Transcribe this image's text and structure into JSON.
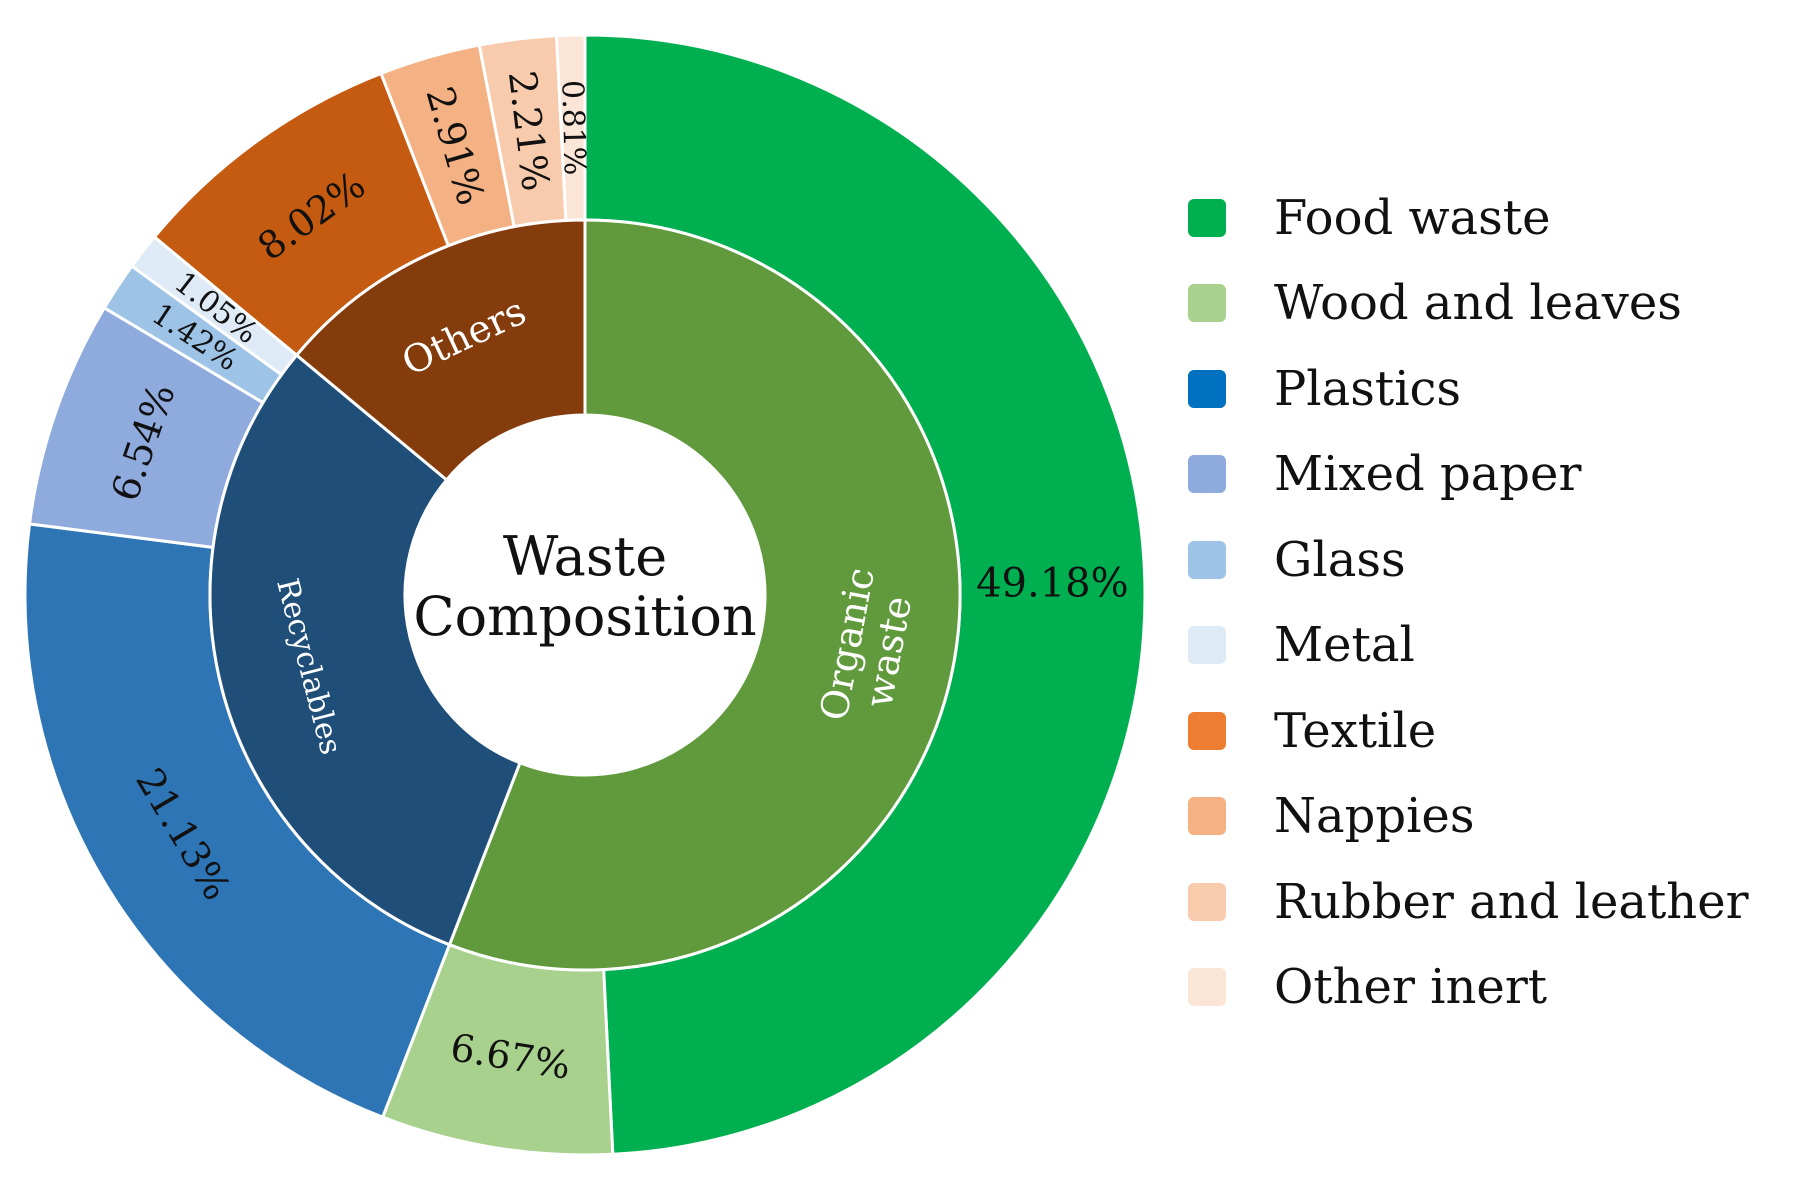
{
  "chart_data": {
    "type": "pie",
    "subtype": "sunburst",
    "title": "Waste Composition",
    "title_position": "center",
    "outer_ring": [
      {
        "name": "Food waste",
        "value": 49.18,
        "label": "49.18%",
        "color": "#00B050",
        "group": "Organic waste"
      },
      {
        "name": "Wood and leaves",
        "value": 6.67,
        "label": "6.67%",
        "color": "#A9D18E",
        "group": "Organic waste"
      },
      {
        "name": "Plastics",
        "value": 21.13,
        "label": "21.13%",
        "color": "#2E75B6",
        "group": "Recyclables"
      },
      {
        "name": "Mixed paper",
        "value": 6.54,
        "label": "6.54%",
        "color": "#8FAADC",
        "group": "Recyclables"
      },
      {
        "name": "Glass",
        "value": 1.42,
        "label": "1.42%",
        "color": "#9DC3E6",
        "group": "Recyclables"
      },
      {
        "name": "Metal",
        "value": 1.05,
        "label": "1.05%",
        "color": "#DEEBF7",
        "group": "Recyclables"
      },
      {
        "name": "Textile",
        "value": 8.02,
        "label": "8.02%",
        "color": "#C55A11",
        "group": "Others"
      },
      {
        "name": "Nappies",
        "value": 2.91,
        "label": "2.91%",
        "color": "#F4B183",
        "group": "Others"
      },
      {
        "name": "Rubber and leather",
        "value": 2.21,
        "label": "2.21%",
        "color": "#F8CBAD",
        "group": "Others"
      },
      {
        "name": "Other inert",
        "value": 0.81,
        "label": "0.81%",
        "color": "#FBE5D6",
        "group": "Others"
      }
    ],
    "inner_ring": [
      {
        "name": "Organic waste",
        "value": 55.85,
        "color": "#619A3C"
      },
      {
        "name": "Recyclables",
        "value": 30.14,
        "color": "#1F4E79"
      },
      {
        "name": "Others",
        "value": 13.95,
        "color": "#843C0C"
      }
    ],
    "legend": {
      "placement": "right",
      "entries": [
        {
          "label": "Food waste",
          "color": "#00B050"
        },
        {
          "label": "Wood and leaves",
          "color": "#A9D18E"
        },
        {
          "label": "Plastics",
          "color": "#0070C0"
        },
        {
          "label": "Mixed paper",
          "color": "#8FAADC"
        },
        {
          "label": "Glass",
          "color": "#9DC3E6"
        },
        {
          "label": "Metal",
          "color": "#DEEBF7"
        },
        {
          "label": "Textile",
          "color": "#ED7D31"
        },
        {
          "label": "Nappies",
          "color": "#F4B183"
        },
        {
          "label": "Rubber and leather",
          "color": "#F8CBAD"
        },
        {
          "label": "Other inert",
          "color": "#FBE5D6"
        }
      ]
    }
  }
}
